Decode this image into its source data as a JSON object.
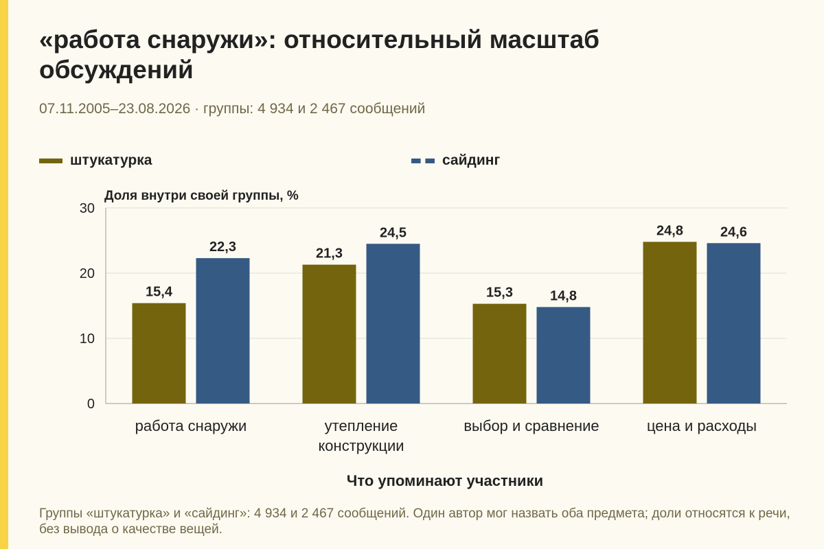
{
  "header": {
    "title": "«работа снаружи»: относительный масштаб обсуждений",
    "subtitle": "07.11.2005–23.08.2026 · группы: 4 934 и 2 467 сообщений"
  },
  "colors": {
    "series_1": "#75640e",
    "series_2": "#355a84",
    "accent": "#f7d345",
    "background": "#fdfbf1"
  },
  "chart_data": {
    "type": "bar",
    "categories": [
      [
        "работа снаружи"
      ],
      [
        "утепление",
        "конструкции"
      ],
      [
        "выбор и сравнение"
      ],
      [
        "цена и расходы"
      ]
    ],
    "series": [
      {
        "name": "штукатурка",
        "values": [
          15.4,
          21.3,
          15.3,
          24.8
        ],
        "value_labels": [
          "15,4",
          "21,3",
          "15,3",
          "24,8"
        ]
      },
      {
        "name": "сайдинг",
        "values": [
          22.3,
          24.5,
          14.8,
          24.6
        ],
        "value_labels": [
          "22,3",
          "24,5",
          "14,8",
          "24,6"
        ]
      }
    ],
    "ylabel": "Доля внутри своей группы, %",
    "xlabel": "Что упоминают участники",
    "ylim": [
      0,
      30
    ],
    "yticks": [
      0,
      10,
      20,
      30
    ],
    "grid": true,
    "legend_position": "top-left"
  },
  "footnote": "Группы «штукатурка» и «сайдинг»: 4 934 и 2 467 сообщений. Один автор мог назвать оба предмета; доли относятся к речи, без вывода о качестве вещей."
}
